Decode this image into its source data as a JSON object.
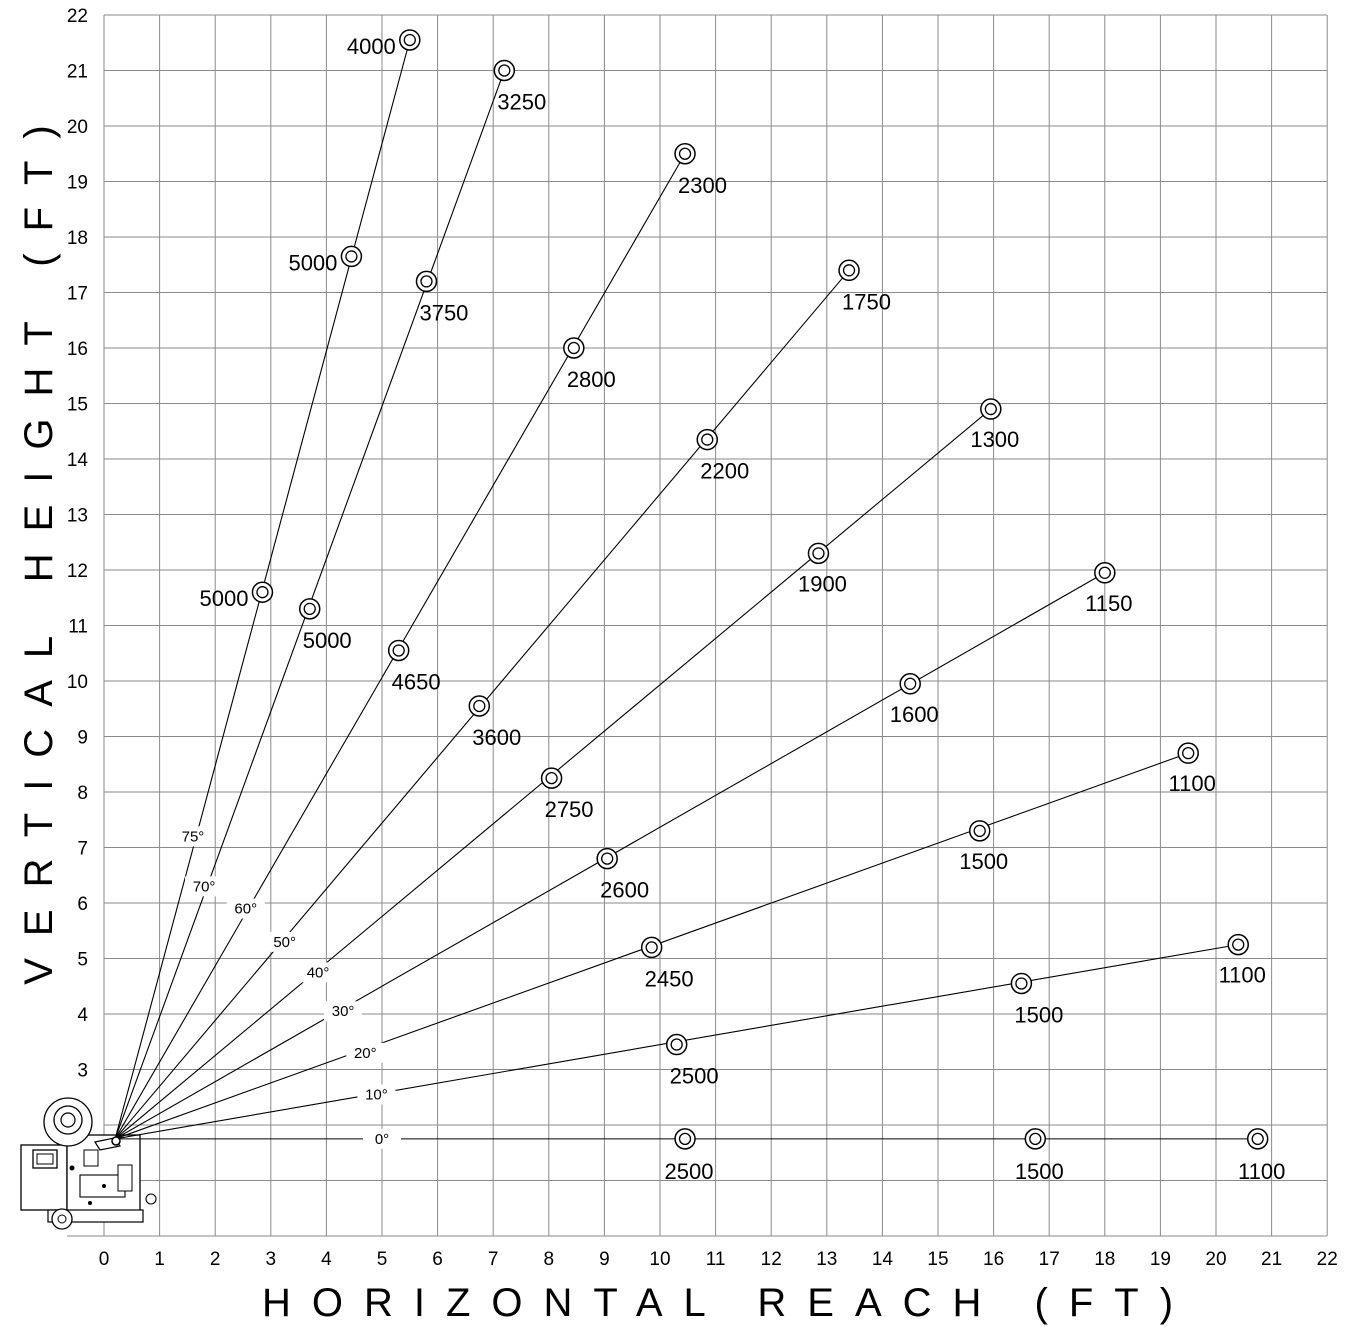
{
  "chart_data": {
    "type": "line",
    "xlabel": "HORIZONTAL REACH (FT)",
    "ylabel": "VERTICAL HEIGHT (FT)",
    "xlim": [
      0,
      22
    ],
    "ylim": [
      0,
      22
    ],
    "x_ticks": [
      "0",
      "1",
      "2",
      "3",
      "4",
      "5",
      "6",
      "7",
      "8",
      "9",
      "10",
      "11",
      "12",
      "13",
      "14",
      "15",
      "16",
      "17",
      "18",
      "19",
      "20",
      "21",
      "22"
    ],
    "y_ticks": [
      "3",
      "4",
      "5",
      "6",
      "7",
      "8",
      "9",
      "10",
      "11",
      "12",
      "13",
      "14",
      "15",
      "16",
      "17",
      "18",
      "19",
      "20",
      "21",
      "22"
    ],
    "grid": true,
    "origin": [
      0.2,
      1.75
    ],
    "series": [
      {
        "name": "75°",
        "label_at": [
          1.6,
          7.2
        ],
        "points": [
          {
            "x": 2.85,
            "y": 11.6,
            "label": "5000",
            "label_side": "left"
          },
          {
            "x": 4.45,
            "y": 17.65,
            "label": "5000",
            "label_side": "left"
          },
          {
            "x": 5.5,
            "y": 21.55,
            "label": "4000",
            "label_side": "left"
          }
        ]
      },
      {
        "name": "70°",
        "label_at": [
          1.8,
          6.3
        ],
        "points": [
          {
            "x": 3.7,
            "y": 11.3,
            "label": "5000",
            "label_side": "right"
          },
          {
            "x": 5.8,
            "y": 17.2,
            "label": "3750",
            "label_side": "right"
          },
          {
            "x": 7.2,
            "y": 21.0,
            "label": "3250",
            "label_side": "right"
          }
        ]
      },
      {
        "name": "60°",
        "label_at": [
          2.55,
          5.9
        ],
        "points": [
          {
            "x": 5.3,
            "y": 10.55,
            "label": "4650",
            "label_side": "right"
          },
          {
            "x": 8.45,
            "y": 16.0,
            "label": "2800",
            "label_side": "right"
          },
          {
            "x": 10.45,
            "y": 19.5,
            "label": "2300",
            "label_side": "right"
          }
        ]
      },
      {
        "name": "50°",
        "label_at": [
          3.25,
          5.3
        ],
        "points": [
          {
            "x": 6.75,
            "y": 9.55,
            "label": "3600",
            "label_side": "right"
          },
          {
            "x": 10.85,
            "y": 14.35,
            "label": "2200",
            "label_side": "right"
          },
          {
            "x": 13.4,
            "y": 17.4,
            "label": "1750",
            "label_side": "right"
          }
        ]
      },
      {
        "name": "40°",
        "label_at": [
          3.85,
          4.75
        ],
        "points": [
          {
            "x": 8.05,
            "y": 8.25,
            "label": "2750",
            "label_side": "right"
          },
          {
            "x": 12.85,
            "y": 12.3,
            "label": "1900",
            "label_side": "left"
          },
          {
            "x": 15.95,
            "y": 14.9,
            "label": "1300",
            "label_side": "left"
          }
        ]
      },
      {
        "name": "30°",
        "label_at": [
          4.3,
          4.05
        ],
        "points": [
          {
            "x": 9.05,
            "y": 6.8,
            "label": "2600",
            "label_side": "right"
          },
          {
            "x": 14.5,
            "y": 9.95,
            "label": "1600",
            "label_side": "left"
          },
          {
            "x": 18.0,
            "y": 11.95,
            "label": "1150",
            "label_side": "left"
          }
        ]
      },
      {
        "name": "20°",
        "label_at": [
          4.7,
          3.3
        ],
        "points": [
          {
            "x": 9.85,
            "y": 5.2,
            "label": "2450",
            "label_side": "right"
          },
          {
            "x": 15.75,
            "y": 7.3,
            "label": "1500",
            "label_side": "left"
          },
          {
            "x": 19.5,
            "y": 8.7,
            "label": "1100",
            "label_side": "left"
          }
        ]
      },
      {
        "name": "10°",
        "label_at": [
          4.9,
          2.55
        ],
        "points": [
          {
            "x": 10.3,
            "y": 3.45,
            "label": "2500",
            "label_side": "right"
          },
          {
            "x": 16.5,
            "y": 4.55,
            "label": "1500",
            "label_side": "right"
          },
          {
            "x": 20.4,
            "y": 5.25,
            "label": "1100",
            "label_side": "left"
          }
        ]
      },
      {
        "name": "0°",
        "label_at": [
          5.0,
          1.75
        ],
        "points": [
          {
            "x": 10.45,
            "y": 1.75,
            "label": "2500",
            "label_side": "right"
          },
          {
            "x": 16.75,
            "y": 1.75,
            "label": "1500",
            "label_side": "right"
          },
          {
            "x": 20.75,
            "y": 1.75,
            "label": "1100",
            "label_side": "right"
          }
        ]
      }
    ]
  },
  "colors": {
    "grid": "#8a8a8a",
    "line": "#000000",
    "background": "#ffffff"
  },
  "icons": {
    "machine": "crane-base-icon"
  }
}
